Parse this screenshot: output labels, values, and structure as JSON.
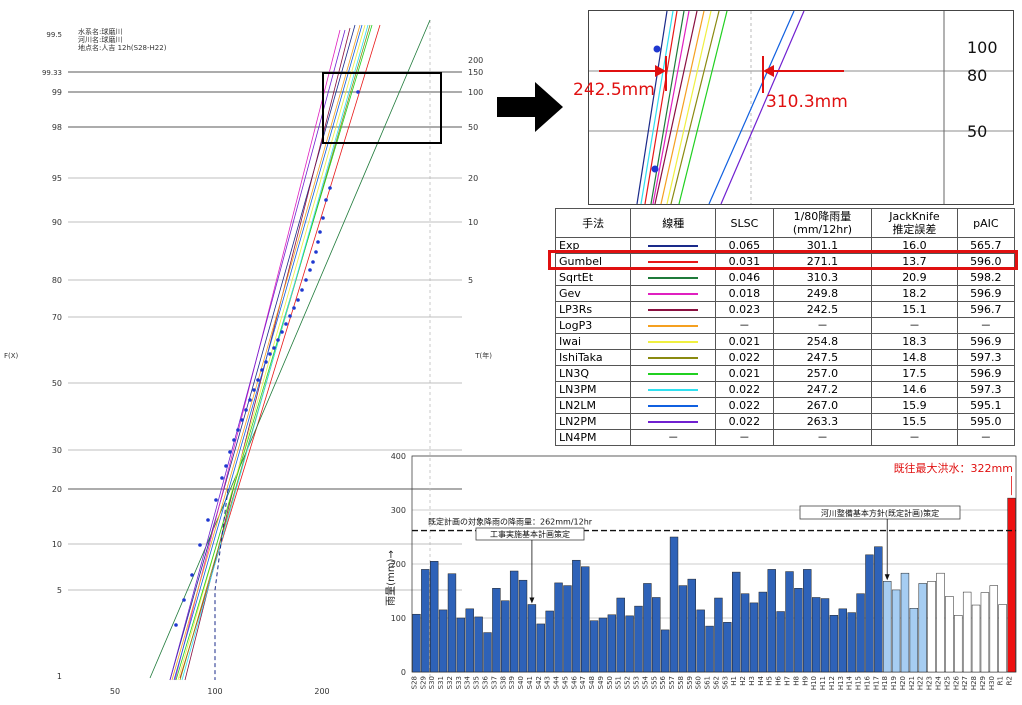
{
  "prob_plot": {
    "station_info": [
      "水系名:球磨川",
      "河川名:球磨川",
      "地点名:人吉 12h(S28-H22)"
    ],
    "left_ticks": [
      "99.5",
      "99.33",
      "99",
      "98",
      "95",
      "90",
      "80",
      "70",
      "50",
      "30",
      "20",
      "10",
      "5",
      "1"
    ],
    "right_ticks": [
      "200",
      "150",
      "100",
      "50",
      "20",
      "10",
      "5"
    ],
    "x_ticks": [
      "50",
      "100",
      "200"
    ],
    "left_axis_label": "F(X)",
    "right_axis_label": "T(年)"
  },
  "zoom": {
    "labels": [
      "100",
      "80",
      "50"
    ],
    "left_value": "242.5mm",
    "right_value": "310.3mm"
  },
  "table": {
    "headers": [
      "手法",
      "線種",
      "SLSC",
      "1/80降雨量\n(mm/12hr)",
      "JackKnife\n推定誤差",
      "pAIC"
    ],
    "rows": [
      {
        "name": "Exp",
        "color": "#1a2a8a",
        "slsc": "0.065",
        "rain": "301.1",
        "jk": "16.0",
        "paic": "565.7"
      },
      {
        "name": "Gumbel",
        "color": "#e81818",
        "slsc": "0.031",
        "rain": "271.1",
        "jk": "13.7",
        "paic": "596.0"
      },
      {
        "name": "SqrtEt",
        "color": "#1f7a3a",
        "slsc": "0.046",
        "rain": "310.3",
        "jk": "20.9",
        "paic": "598.2"
      },
      {
        "name": "Gev",
        "color": "#e020c0",
        "slsc": "0.018",
        "rain": "249.8",
        "jk": "18.2",
        "paic": "596.9"
      },
      {
        "name": "LP3Rs",
        "color": "#8a1040",
        "slsc": "0.023",
        "rain": "242.5",
        "jk": "15.1",
        "paic": "596.7"
      },
      {
        "name": "LogP3",
        "color": "#f5a020",
        "slsc": "－",
        "rain": "－",
        "jk": "－",
        "paic": "－"
      },
      {
        "name": "Iwai",
        "color": "#f0f040",
        "slsc": "0.021",
        "rain": "254.8",
        "jk": "18.3",
        "paic": "596.9"
      },
      {
        "name": "IshiTaka",
        "color": "#8a8a10",
        "slsc": "0.022",
        "rain": "247.5",
        "jk": "14.8",
        "paic": "597.3"
      },
      {
        "name": "LN3Q",
        "color": "#20d020",
        "slsc": "0.021",
        "rain": "257.0",
        "jk": "17.5",
        "paic": "596.9"
      },
      {
        "name": "LN3PM",
        "color": "#30e0f0",
        "slsc": "0.022",
        "rain": "247.2",
        "jk": "14.6",
        "paic": "597.3"
      },
      {
        "name": "LN2LM",
        "color": "#1060e0",
        "slsc": "0.022",
        "rain": "267.0",
        "jk": "15.9",
        "paic": "595.1"
      },
      {
        "name": "LN2PM",
        "color": "#7020d0",
        "slsc": "0.022",
        "rain": "263.3",
        "jk": "15.5",
        "paic": "595.0"
      },
      {
        "name": "LN4PM",
        "color": "",
        "slsc": "－",
        "rain": "－",
        "jk": "－",
        "paic": "－"
      }
    ]
  },
  "chart_data": {
    "type": "bar",
    "ylabel": "雨量(mm)→",
    "ylim": [
      0,
      400
    ],
    "yticks": [
      0,
      100,
      200,
      300,
      400
    ],
    "categories": [
      "S28",
      "S29",
      "S30",
      "S31",
      "S32",
      "S33",
      "S34",
      "S35",
      "S36",
      "S37",
      "S38",
      "S39",
      "S40",
      "S41",
      "S42",
      "S43",
      "S44",
      "S45",
      "S46",
      "S47",
      "S48",
      "S49",
      "S50",
      "S51",
      "S52",
      "S53",
      "S54",
      "S55",
      "S56",
      "S57",
      "S58",
      "S59",
      "S60",
      "S61",
      "S62",
      "S63",
      "H1",
      "H2",
      "H3",
      "H4",
      "H5",
      "H6",
      "H7",
      "H8",
      "H9",
      "H10",
      "H11",
      "H12",
      "H13",
      "H14",
      "H15",
      "H16",
      "H17",
      "H18",
      "H19",
      "H20",
      "H21",
      "H22",
      "H23",
      "H24",
      "H25",
      "H26",
      "H27",
      "H28",
      "H29",
      "H30",
      "R1",
      "R2"
    ],
    "values": [
      107,
      190,
      205,
      115,
      182,
      100,
      117,
      102,
      73,
      155,
      132,
      187,
      170,
      125,
      89,
      113,
      165,
      160,
      207,
      195,
      95,
      100,
      106,
      137,
      104,
      122,
      164,
      138,
      78,
      250,
      160,
      172,
      115,
      85,
      137,
      92,
      185,
      145,
      128,
      148,
      190,
      112,
      186,
      155,
      190,
      138,
      136,
      105,
      117,
      110,
      145,
      217,
      232,
      168,
      152,
      183,
      118,
      164,
      168,
      183,
      140,
      105,
      148,
      124,
      147,
      160,
      125,
      322
    ],
    "colors_by_group": {
      "observed": "#2e62b8",
      "post_plan": "#a6cdf2",
      "recent": "#ffffff",
      "max": "#ee1010"
    },
    "groups": [
      "observed",
      "observed",
      "observed",
      "observed",
      "observed",
      "observed",
      "observed",
      "observed",
      "observed",
      "observed",
      "observed",
      "observed",
      "observed",
      "observed",
      "observed",
      "observed",
      "observed",
      "observed",
      "observed",
      "observed",
      "observed",
      "observed",
      "observed",
      "observed",
      "observed",
      "observed",
      "observed",
      "observed",
      "observed",
      "observed",
      "observed",
      "observed",
      "observed",
      "observed",
      "observed",
      "observed",
      "observed",
      "observed",
      "observed",
      "observed",
      "observed",
      "observed",
      "observed",
      "observed",
      "observed",
      "observed",
      "observed",
      "observed",
      "observed",
      "observed",
      "observed",
      "observed",
      "observed",
      "post_plan",
      "post_plan",
      "post_plan",
      "post_plan",
      "post_plan",
      "recent",
      "recent",
      "recent",
      "recent",
      "recent",
      "recent",
      "recent",
      "recent",
      "recent",
      "max"
    ],
    "plan_line": {
      "value": 262,
      "label": "既定計画の対象降雨の降雨量：262mm/12hr"
    },
    "annotations": [
      {
        "text": "工事実施基本計画策定",
        "category": "S41"
      },
      {
        "text": "河川整備基本方針(既定計画)策定",
        "category": "H18"
      },
      {
        "text": "既往最大洪水：322mm",
        "category": "R2"
      }
    ]
  }
}
